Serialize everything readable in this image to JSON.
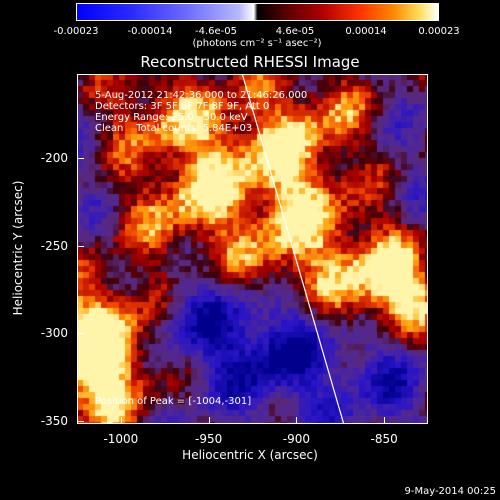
{
  "colorbar": {
    "ticks": [
      "-0.00023",
      "-0.00014",
      "-4.6e-05",
      "4.6e-05",
      "0.00014",
      "0.00023"
    ],
    "units": "(photons cm⁻² s⁻¹ asec⁻²)"
  },
  "title": "Reconstructed RHESSI Image",
  "info": {
    "time": "5-Aug-2012 21:42:36.000 to 21:46:26.000",
    "detectors": "Detectors: 3F 5F 6F 7F 8F 9F, Att 0",
    "energy": "Energy Range: 25.0 - 50.0 keV",
    "clean": "Clean    Total counts: 5.84E+03"
  },
  "peak": "Position of Peak = [-1004,-301]",
  "date": "9-May-2014 00:25",
  "chart_data": {
    "type": "heatmap",
    "title": "Reconstructed RHESSI Image",
    "xlabel": "Heliocentric X (arcsec)",
    "ylabel": "Heliocentric Y (arcsec)",
    "xlim": [
      -1025,
      -825
    ],
    "ylim": [
      -352,
      -152
    ],
    "xticks": [
      -1000,
      -950,
      -900,
      -850
    ],
    "yticks": [
      -200,
      -250,
      -300,
      -350
    ],
    "xtick_labels": [
      "-1000",
      "-950",
      "-900",
      "-850"
    ],
    "ytick_labels": [
      "-200",
      "-250",
      "-300",
      "-350"
    ],
    "color_range": [
      -0.00023,
      0.00023
    ],
    "peak_position": [
      -1004,
      -301
    ],
    "limb_line": [
      [
        -932,
        -148
      ],
      [
        -873,
        -352
      ]
    ]
  }
}
